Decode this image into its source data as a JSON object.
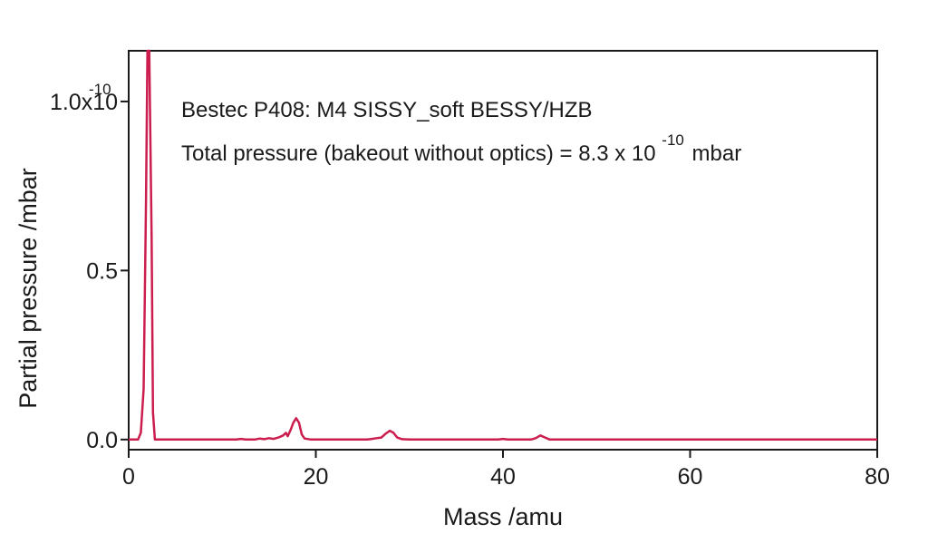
{
  "chart_data": {
    "type": "line",
    "title": "",
    "xlabel": "Mass /amu",
    "ylabel": "Partial pressure /mbar",
    "xlim": [
      0,
      80
    ],
    "ylim": [
      -0.03,
      1.15
    ],
    "y_unit_exponent_label": "-10",
    "x_ticks": [
      {
        "value": 0,
        "label": "0"
      },
      {
        "value": 20,
        "label": "20"
      },
      {
        "value": 40,
        "label": "40"
      },
      {
        "value": 60,
        "label": "60"
      },
      {
        "value": 80,
        "label": "80"
      }
    ],
    "y_ticks": [
      {
        "value": 0.0,
        "label": "0.0"
      },
      {
        "value": 0.5,
        "label": "0.5"
      },
      {
        "value": 1.0,
        "label": "1.0x10"
      }
    ],
    "grid": false,
    "line_color": "#cc1d4f",
    "annotations": {
      "line1": "Bestec P408: M4 SISSY_soft BESSY/HZB",
      "line2_prefix": "Total pressure (bakeout without optics)  = 8.3 x 10",
      "line2_exponent": "-10",
      "line2_suffix": "mbar"
    },
    "series": [
      {
        "points": [
          [
            0.0,
            0.0
          ],
          [
            1.0,
            0.0
          ],
          [
            1.3,
            0.02
          ],
          [
            1.6,
            0.15
          ],
          [
            1.85,
            0.7
          ],
          [
            2.0,
            1.15
          ],
          [
            2.2,
            1.15
          ],
          [
            2.45,
            0.6
          ],
          [
            2.6,
            0.08
          ],
          [
            2.8,
            0.0
          ],
          [
            3.5,
            0.0
          ],
          [
            8.0,
            0.0
          ],
          [
            11.5,
            0.0
          ],
          [
            12.0,
            0.002
          ],
          [
            12.5,
            0.0
          ],
          [
            13.5,
            0.0
          ],
          [
            14.0,
            0.003
          ],
          [
            14.5,
            0.001
          ],
          [
            15.0,
            0.004
          ],
          [
            15.5,
            0.002
          ],
          [
            16.0,
            0.006
          ],
          [
            16.5,
            0.012
          ],
          [
            16.8,
            0.02
          ],
          [
            17.0,
            0.01
          ],
          [
            17.3,
            0.028
          ],
          [
            17.6,
            0.05
          ],
          [
            17.9,
            0.063
          ],
          [
            18.2,
            0.05
          ],
          [
            18.5,
            0.015
          ],
          [
            18.8,
            0.003
          ],
          [
            19.5,
            0.0
          ],
          [
            25.5,
            0.0
          ],
          [
            26.0,
            0.002
          ],
          [
            26.5,
            0.004
          ],
          [
            27.0,
            0.006
          ],
          [
            27.5,
            0.018
          ],
          [
            27.9,
            0.026
          ],
          [
            28.3,
            0.02
          ],
          [
            28.7,
            0.006
          ],
          [
            29.2,
            0.001
          ],
          [
            30.0,
            0.0
          ],
          [
            39.5,
            0.0
          ],
          [
            40.0,
            0.002
          ],
          [
            40.5,
            0.0
          ],
          [
            43.0,
            0.0
          ],
          [
            43.5,
            0.004
          ],
          [
            44.0,
            0.012
          ],
          [
            44.5,
            0.006
          ],
          [
            45.0,
            0.0
          ],
          [
            80.0,
            0.0
          ]
        ]
      }
    ]
  }
}
